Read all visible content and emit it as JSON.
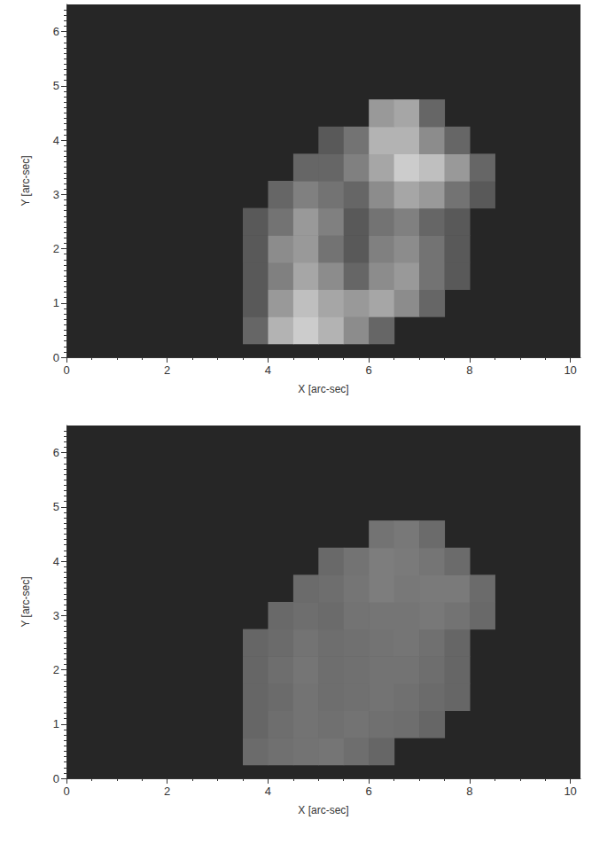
{
  "chart_data": [
    {
      "type": "heatmap",
      "xlabel": "X [arc-sec]",
      "ylabel": "Y [arc-sec]",
      "xlim": [
        0,
        10.2
      ],
      "xticks": [
        0,
        2,
        4,
        6,
        8,
        10
      ],
      "ylim": [
        0,
        6.5
      ],
      "yticks": [
        0,
        1,
        2,
        3,
        4,
        5,
        6
      ],
      "cells": [
        [
          3.75,
          0.5,
          0.4
        ],
        [
          4.25,
          0.5,
          0.7
        ],
        [
          4.75,
          0.5,
          0.8
        ],
        [
          5.25,
          0.5,
          0.7
        ],
        [
          5.75,
          0.5,
          0.55
        ],
        [
          6.25,
          0.5,
          0.4
        ],
        [
          3.75,
          1.0,
          0.35
        ],
        [
          4.25,
          1.0,
          0.6
        ],
        [
          4.75,
          1.0,
          0.75
        ],
        [
          5.25,
          1.0,
          0.65
        ],
        [
          5.75,
          1.0,
          0.6
        ],
        [
          6.25,
          1.0,
          0.65
        ],
        [
          6.75,
          1.0,
          0.55
        ],
        [
          7.25,
          1.0,
          0.4
        ],
        [
          3.75,
          1.5,
          0.35
        ],
        [
          4.25,
          1.5,
          0.5
        ],
        [
          4.75,
          1.5,
          0.65
        ],
        [
          5.25,
          1.5,
          0.55
        ],
        [
          5.75,
          1.5,
          0.4
        ],
        [
          6.25,
          1.5,
          0.55
        ],
        [
          6.75,
          1.5,
          0.6
        ],
        [
          7.25,
          1.5,
          0.45
        ],
        [
          7.75,
          1.5,
          0.35
        ],
        [
          3.75,
          2.0,
          0.35
        ],
        [
          4.25,
          2.0,
          0.55
        ],
        [
          4.75,
          2.0,
          0.6
        ],
        [
          5.25,
          2.0,
          0.45
        ],
        [
          5.75,
          2.0,
          0.35
        ],
        [
          6.25,
          2.0,
          0.5
        ],
        [
          6.75,
          2.0,
          0.55
        ],
        [
          7.25,
          2.0,
          0.45
        ],
        [
          7.75,
          2.0,
          0.35
        ],
        [
          3.75,
          2.5,
          0.35
        ],
        [
          4.25,
          2.5,
          0.45
        ],
        [
          4.75,
          2.5,
          0.6
        ],
        [
          5.25,
          2.5,
          0.5
        ],
        [
          5.75,
          2.5,
          0.35
        ],
        [
          6.25,
          2.5,
          0.45
        ],
        [
          6.75,
          2.5,
          0.5
        ],
        [
          7.25,
          2.5,
          0.4
        ],
        [
          7.75,
          2.5,
          0.35
        ],
        [
          4.25,
          3.0,
          0.4
        ],
        [
          4.75,
          3.0,
          0.5
        ],
        [
          5.25,
          3.0,
          0.45
        ],
        [
          5.75,
          3.0,
          0.4
        ],
        [
          6.25,
          3.0,
          0.55
        ],
        [
          6.75,
          3.0,
          0.65
        ],
        [
          7.25,
          3.0,
          0.6
        ],
        [
          7.75,
          3.0,
          0.45
        ],
        [
          8.25,
          3.0,
          0.35
        ],
        [
          4.75,
          3.5,
          0.4
        ],
        [
          5.25,
          3.5,
          0.4
        ],
        [
          5.75,
          3.5,
          0.5
        ],
        [
          6.25,
          3.5,
          0.65
        ],
        [
          6.75,
          3.5,
          0.8
        ],
        [
          7.25,
          3.5,
          0.75
        ],
        [
          7.75,
          3.5,
          0.6
        ],
        [
          8.25,
          3.5,
          0.4
        ],
        [
          5.25,
          4.0,
          0.35
        ],
        [
          5.75,
          4.0,
          0.45
        ],
        [
          6.25,
          4.0,
          0.7
        ],
        [
          6.75,
          4.0,
          0.7
        ],
        [
          7.25,
          4.0,
          0.55
        ],
        [
          7.75,
          4.0,
          0.4
        ],
        [
          6.25,
          4.5,
          0.6
        ],
        [
          6.75,
          4.5,
          0.65
        ],
        [
          7.25,
          4.5,
          0.4
        ]
      ]
    },
    {
      "type": "heatmap",
      "xlabel": "X [arc-sec]",
      "ylabel": "Y [arc-sec]",
      "xlim": [
        0,
        10.2
      ],
      "xticks": [
        0,
        2,
        4,
        6,
        8,
        10
      ],
      "ylim": [
        0,
        6.5
      ],
      "yticks": [
        0,
        1,
        2,
        3,
        4,
        5,
        6
      ],
      "cells": [
        [
          3.75,
          0.5,
          0.42
        ],
        [
          4.25,
          0.5,
          0.44
        ],
        [
          4.75,
          0.5,
          0.45
        ],
        [
          5.25,
          0.5,
          0.46
        ],
        [
          5.75,
          0.5,
          0.43
        ],
        [
          6.25,
          0.5,
          0.4
        ],
        [
          3.75,
          1.0,
          0.4
        ],
        [
          4.25,
          1.0,
          0.43
        ],
        [
          4.75,
          1.0,
          0.45
        ],
        [
          5.25,
          1.0,
          0.44
        ],
        [
          5.75,
          1.0,
          0.45
        ],
        [
          6.25,
          1.0,
          0.44
        ],
        [
          6.75,
          1.0,
          0.43
        ],
        [
          7.25,
          1.0,
          0.4
        ],
        [
          3.75,
          1.5,
          0.4
        ],
        [
          4.25,
          1.5,
          0.42
        ],
        [
          4.75,
          1.5,
          0.45
        ],
        [
          5.25,
          1.5,
          0.43
        ],
        [
          5.75,
          1.5,
          0.44
        ],
        [
          6.25,
          1.5,
          0.45
        ],
        [
          6.75,
          1.5,
          0.44
        ],
        [
          7.25,
          1.5,
          0.42
        ],
        [
          7.75,
          1.5,
          0.4
        ],
        [
          3.75,
          2.0,
          0.4
        ],
        [
          4.25,
          2.0,
          0.43
        ],
        [
          4.75,
          2.0,
          0.46
        ],
        [
          5.25,
          2.0,
          0.43
        ],
        [
          5.75,
          2.0,
          0.44
        ],
        [
          6.25,
          2.0,
          0.45
        ],
        [
          6.75,
          2.0,
          0.45
        ],
        [
          7.25,
          2.0,
          0.43
        ],
        [
          7.75,
          2.0,
          0.4
        ],
        [
          3.75,
          2.5,
          0.4
        ],
        [
          4.25,
          2.5,
          0.42
        ],
        [
          4.75,
          2.5,
          0.45
        ],
        [
          5.25,
          2.5,
          0.43
        ],
        [
          5.75,
          2.5,
          0.44
        ],
        [
          6.25,
          2.5,
          0.45
        ],
        [
          6.75,
          2.5,
          0.46
        ],
        [
          7.25,
          2.5,
          0.44
        ],
        [
          7.75,
          2.5,
          0.4
        ],
        [
          4.25,
          3.0,
          0.41
        ],
        [
          4.75,
          3.0,
          0.43
        ],
        [
          5.25,
          3.0,
          0.42
        ],
        [
          5.75,
          3.0,
          0.45
        ],
        [
          6.25,
          3.0,
          0.46
        ],
        [
          6.75,
          3.0,
          0.46
        ],
        [
          7.25,
          3.0,
          0.47
        ],
        [
          7.75,
          3.0,
          0.45
        ],
        [
          8.25,
          3.0,
          0.41
        ],
        [
          4.75,
          3.5,
          0.42
        ],
        [
          5.25,
          3.5,
          0.43
        ],
        [
          5.75,
          3.5,
          0.46
        ],
        [
          6.25,
          3.5,
          0.49
        ],
        [
          6.75,
          3.5,
          0.47
        ],
        [
          7.25,
          3.5,
          0.48
        ],
        [
          7.75,
          3.5,
          0.48
        ],
        [
          8.25,
          3.5,
          0.42
        ],
        [
          5.25,
          4.0,
          0.41
        ],
        [
          5.75,
          4.0,
          0.45
        ],
        [
          6.25,
          4.0,
          0.49
        ],
        [
          6.75,
          4.0,
          0.48
        ],
        [
          7.25,
          4.0,
          0.46
        ],
        [
          7.75,
          4.0,
          0.42
        ],
        [
          6.25,
          4.5,
          0.45
        ],
        [
          6.75,
          4.5,
          0.47
        ],
        [
          7.25,
          4.5,
          0.42
        ]
      ]
    }
  ]
}
